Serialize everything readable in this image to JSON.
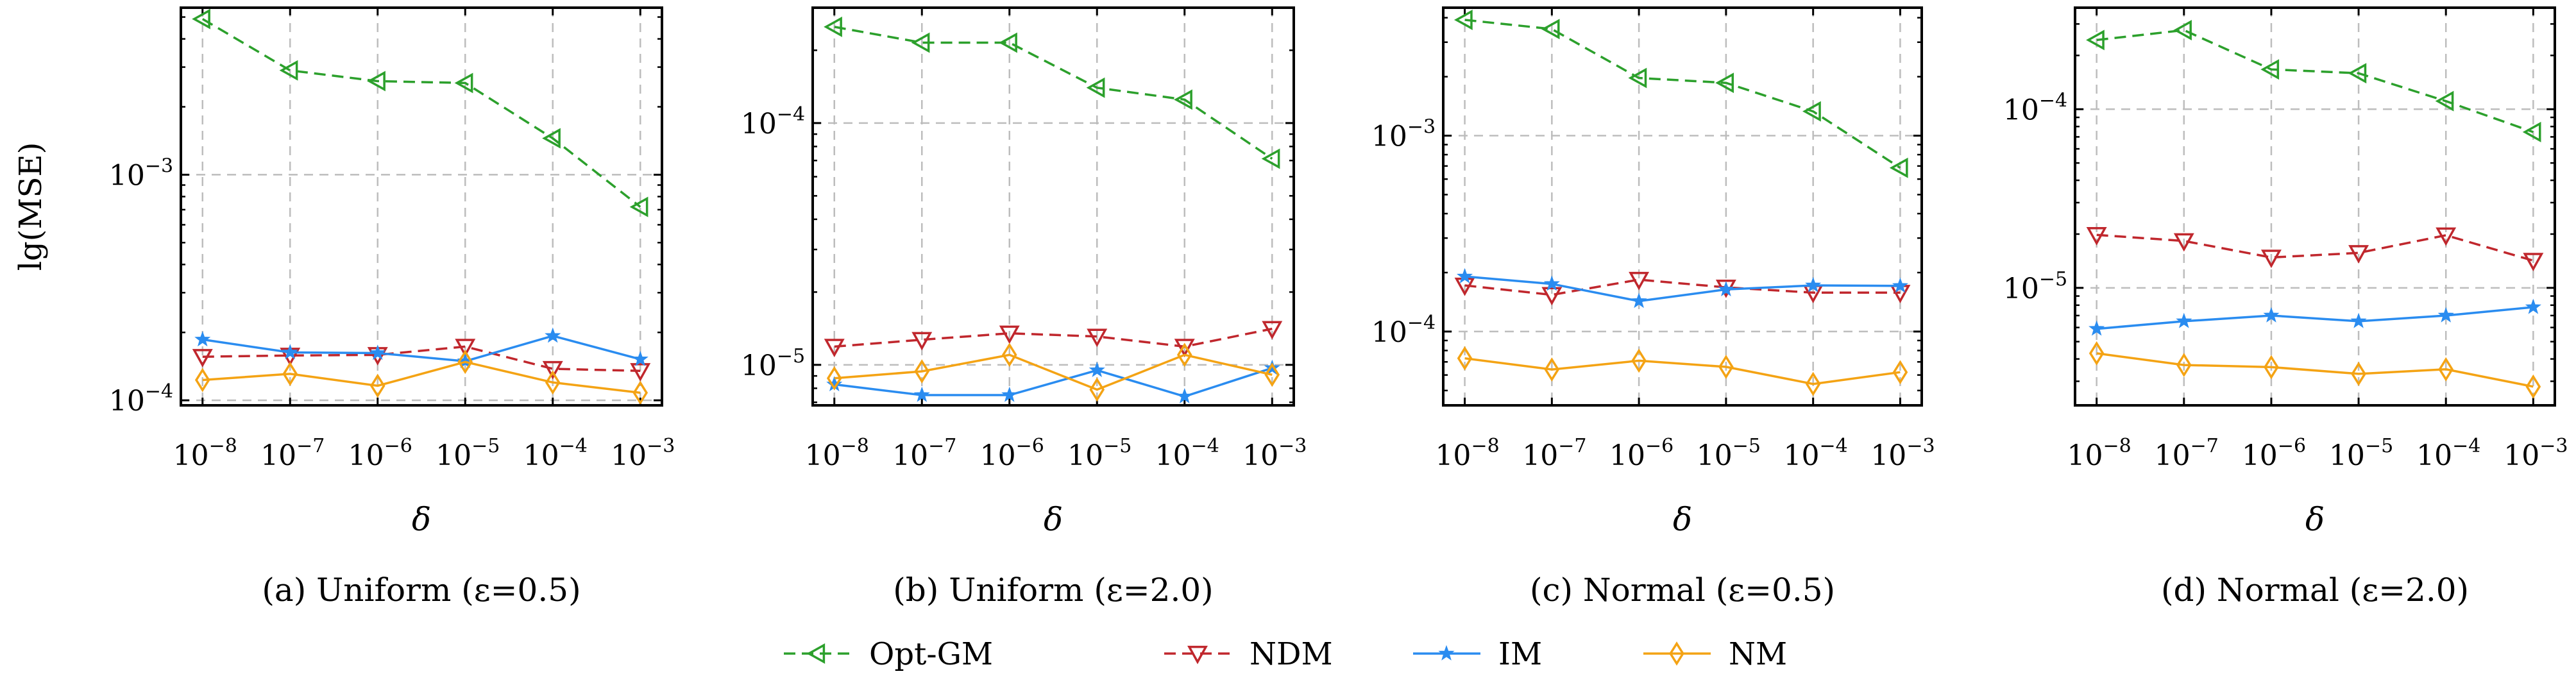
{
  "figure": {
    "ylabel_shared": "lg(MSE)",
    "x_tick_base": "10",
    "legend": [
      {
        "key": "opt",
        "label": "Opt-GM"
      },
      {
        "key": "ndm",
        "label": "NDM"
      },
      {
        "key": "im",
        "label": "IM"
      },
      {
        "key": "nm",
        "label": "NM"
      }
    ]
  },
  "colors": {
    "opt": "#2ca02c",
    "ndm": "#c0272d",
    "im": "#2a8cf0",
    "nm": "#f4a314",
    "grid": "#bdbdbd"
  },
  "chart_data": [
    {
      "type": "line",
      "caption": "(a) Uniform (ε=0.5)",
      "xlabel": "δ",
      "ylabel": "lg(MSE)",
      "x": [
        -8,
        -7,
        -6,
        -5,
        -4,
        -3
      ],
      "x_tick_labels": [
        "10^-8",
        "10^-7",
        "10^-6",
        "10^-5",
        "10^-4",
        "10^-3"
      ],
      "y_scale": "log",
      "ylim": [
        9.5e-05,
        0.0055
      ],
      "y_ticks": [
        {
          "value": 0.0001,
          "exp": "-4"
        },
        {
          "value": 0.001,
          "exp": "-3"
        }
      ],
      "grid": true,
      "series": [
        {
          "key": "opt",
          "name": "Opt-GM",
          "values": [
            0.0049,
            0.0029,
            0.0026,
            0.00255,
            0.00145,
            0.00072
          ]
        },
        {
          "key": "ndm",
          "name": "NDM",
          "values": [
            0.000156,
            0.000158,
            0.000159,
            0.000173,
            0.000138,
            0.000135
          ]
        },
        {
          "key": "im",
          "name": "IM",
          "values": [
            0.000186,
            0.000163,
            0.000162,
            0.000149,
            0.000193,
            0.000152
          ]
        },
        {
          "key": "nm",
          "name": "NM",
          "values": [
            0.000123,
            0.000131,
            0.000116,
            0.000148,
            0.00012,
            0.000108
          ]
        }
      ]
    },
    {
      "type": "line",
      "caption": "(b) Uniform (ε=2.0)",
      "xlabel": "δ",
      "ylabel": "",
      "x": [
        -8,
        -7,
        -6,
        -5,
        -4,
        -3
      ],
      "x_tick_labels": [
        "10^-8",
        "10^-7",
        "10^-6",
        "10^-5",
        "10^-4",
        "10^-3"
      ],
      "y_scale": "log",
      "ylim": [
        6.8e-06,
        0.0003
      ],
      "y_ticks": [
        {
          "value": 1e-05,
          "exp": "-5"
        },
        {
          "value": 0.0001,
          "exp": "-4"
        }
      ],
      "grid": true,
      "series": [
        {
          "key": "opt",
          "name": "Opt-GM",
          "values": [
            0.00025,
            0.000215,
            0.000215,
            0.00014,
            0.000125,
            7.12e-05
          ]
        },
        {
          "key": "ndm",
          "name": "NDM",
          "values": [
            1.19e-05,
            1.27e-05,
            1.35e-05,
            1.31e-05,
            1.19e-05,
            1.41e-05
          ]
        },
        {
          "key": "im",
          "name": "IM",
          "values": [
            8.3e-06,
            7.5e-06,
            7.5e-06,
            9.5e-06,
            7.4e-06,
            9.7e-06
          ]
        },
        {
          "key": "nm",
          "name": "NM",
          "values": [
            8.8e-06,
            9.4e-06,
            1.1e-05,
            7.9e-06,
            1.1e-05,
            9.1e-06
          ]
        }
      ]
    },
    {
      "type": "line",
      "caption": "(c) Normal (ε=0.5)",
      "xlabel": "δ",
      "ylabel": "",
      "x": [
        -8,
        -7,
        -6,
        -5,
        -4,
        -3
      ],
      "x_tick_labels": [
        "10^-8",
        "10^-7",
        "10^-6",
        "10^-5",
        "10^-4",
        "10^-3"
      ],
      "y_scale": "log",
      "ylim": [
        4.2e-05,
        0.0045
      ],
      "y_ticks": [
        {
          "value": 0.0001,
          "exp": "-4"
        },
        {
          "value": 0.001,
          "exp": "-3"
        }
      ],
      "grid": true,
      "series": [
        {
          "key": "opt",
          "name": "Opt-GM",
          "values": [
            0.0039,
            0.0035,
            0.00197,
            0.00186,
            0.00133,
            0.000685
          ]
        },
        {
          "key": "ndm",
          "name": "NDM",
          "values": [
            0.000172,
            0.000154,
            0.000184,
            0.000168,
            0.000158,
            0.000158
          ]
        },
        {
          "key": "im",
          "name": "IM",
          "values": [
            0.000191,
            0.000175,
            0.000143,
            0.000164,
            0.000172,
            0.000171
          ]
        },
        {
          "key": "nm",
          "name": "NM",
          "values": [
            7.3e-05,
            6.4e-05,
            7.1e-05,
            6.6e-05,
            5.4e-05,
            6.2e-05
          ]
        }
      ]
    },
    {
      "type": "line",
      "caption": "(d) Normal (ε=2.0)",
      "xlabel": "δ",
      "ylabel": "",
      "x": [
        -8,
        -7,
        -6,
        -5,
        -4,
        -3
      ],
      "x_tick_labels": [
        "10^-8",
        "10^-7",
        "10^-6",
        "10^-5",
        "10^-4",
        "10^-3"
      ],
      "y_scale": "log",
      "ylim": [
        2.2e-06,
        0.00037
      ],
      "y_ticks": [
        {
          "value": 1e-05,
          "exp": "-5"
        },
        {
          "value": 0.0001,
          "exp": "-4"
        }
      ],
      "grid": true,
      "series": [
        {
          "key": "opt",
          "name": "Opt-GM",
          "values": [
            0.000244,
            0.000277,
            0.000167,
            0.000159,
            0.000111,
            7.45e-05
          ]
        },
        {
          "key": "ndm",
          "name": "NDM",
          "values": [
            1.98e-05,
            1.83e-05,
            1.48e-05,
            1.57e-05,
            1.97e-05,
            1.42e-05
          ]
        },
        {
          "key": "im",
          "name": "IM",
          "values": [
            5.9e-06,
            6.5e-06,
            7e-06,
            6.5e-06,
            7e-06,
            7.8e-06
          ]
        },
        {
          "key": "nm",
          "name": "NM",
          "values": [
            4.3e-06,
            3.7e-06,
            3.6e-06,
            3.3e-06,
            3.5e-06,
            2.8e-06
          ]
        }
      ]
    }
  ]
}
